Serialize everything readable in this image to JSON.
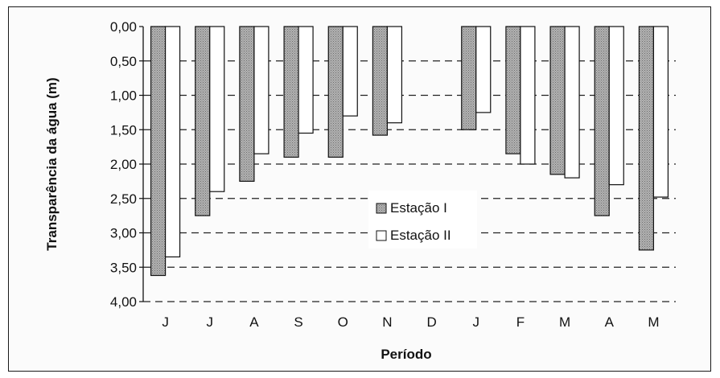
{
  "chart_data": {
    "type": "bar",
    "orientation": "inverted-y",
    "categories": [
      "J",
      "J",
      "A",
      "S",
      "O",
      "N",
      "D",
      "J",
      "F",
      "M",
      "A",
      "M"
    ],
    "series": [
      {
        "name": "Estação I",
        "values": [
          3.62,
          2.75,
          2.25,
          1.9,
          1.9,
          1.58,
          null,
          1.5,
          1.85,
          2.15,
          2.75,
          3.25
        ],
        "color": "#9a9a9a",
        "pattern": "dotted-gray"
      },
      {
        "name": "Estação II",
        "values": [
          3.35,
          2.4,
          1.85,
          1.55,
          1.3,
          1.4,
          null,
          1.25,
          2.0,
          2.2,
          2.3,
          2.48
        ],
        "color": "#ffffff",
        "pattern": "white"
      }
    ],
    "yticks": [
      "0,00",
      "0,50",
      "1,00",
      "1,50",
      "2,00",
      "2,50",
      "3,00",
      "3,50",
      "4,00"
    ],
    "ylim": [
      0,
      4
    ],
    "ylabel": "Transparência da água (m)",
    "xlabel": "Período",
    "grid": "horizontal-dashed",
    "legend_position": "center"
  }
}
